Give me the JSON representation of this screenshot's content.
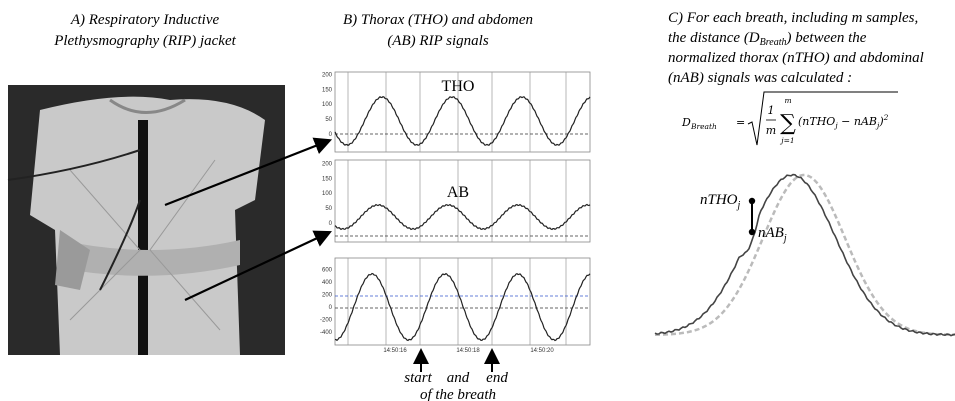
{
  "panel_a": {
    "title": [
      "A) Respiratory Inductive",
      "Plethysmography (RIP) jacket"
    ]
  },
  "panel_b": {
    "title": [
      "B) Thorax (THO) and abdomen",
      "(AB) RIP signals"
    ],
    "plots": [
      {
        "label": "THO",
        "yticks": [
          "200",
          "150",
          "100",
          "50",
          "0"
        ]
      },
      {
        "label": "AB",
        "yticks": [
          "200",
          "150",
          "100",
          "50",
          "0"
        ]
      },
      {
        "yticks": [
          "600",
          "400",
          "200",
          "0",
          "-200",
          "-400"
        ]
      }
    ],
    "time_labels": [
      "14:50:16",
      "14:50:18",
      "14:50:20"
    ],
    "annotation": [
      "start",
      "and",
      "end",
      "of the breath"
    ]
  },
  "panel_c": {
    "text": [
      "C) For each breath, including m samples,",
      [
        "the distance (D",
        "Breath",
        ") between the"
      ],
      "normalized thorax (nTHO) and abdominal",
      "(nAB) signals was calculated :"
    ],
    "formula": {
      "lhs": "D",
      "lhs_sub": "Breath",
      "equals": "=",
      "numerator": "1",
      "denominator": "m",
      "sum": "∑",
      "sum_upper": "m",
      "sum_lower": "j=1",
      "term1": "(nTHO",
      "term1_sub": "j",
      "term2": " − nAB",
      "term2_sub": "j",
      "close": ")",
      "power": "2"
    },
    "labels": {
      "tho": "nTHO",
      "tho_sub": "j",
      "ab": "nAB",
      "ab_sub": "j"
    }
  }
}
